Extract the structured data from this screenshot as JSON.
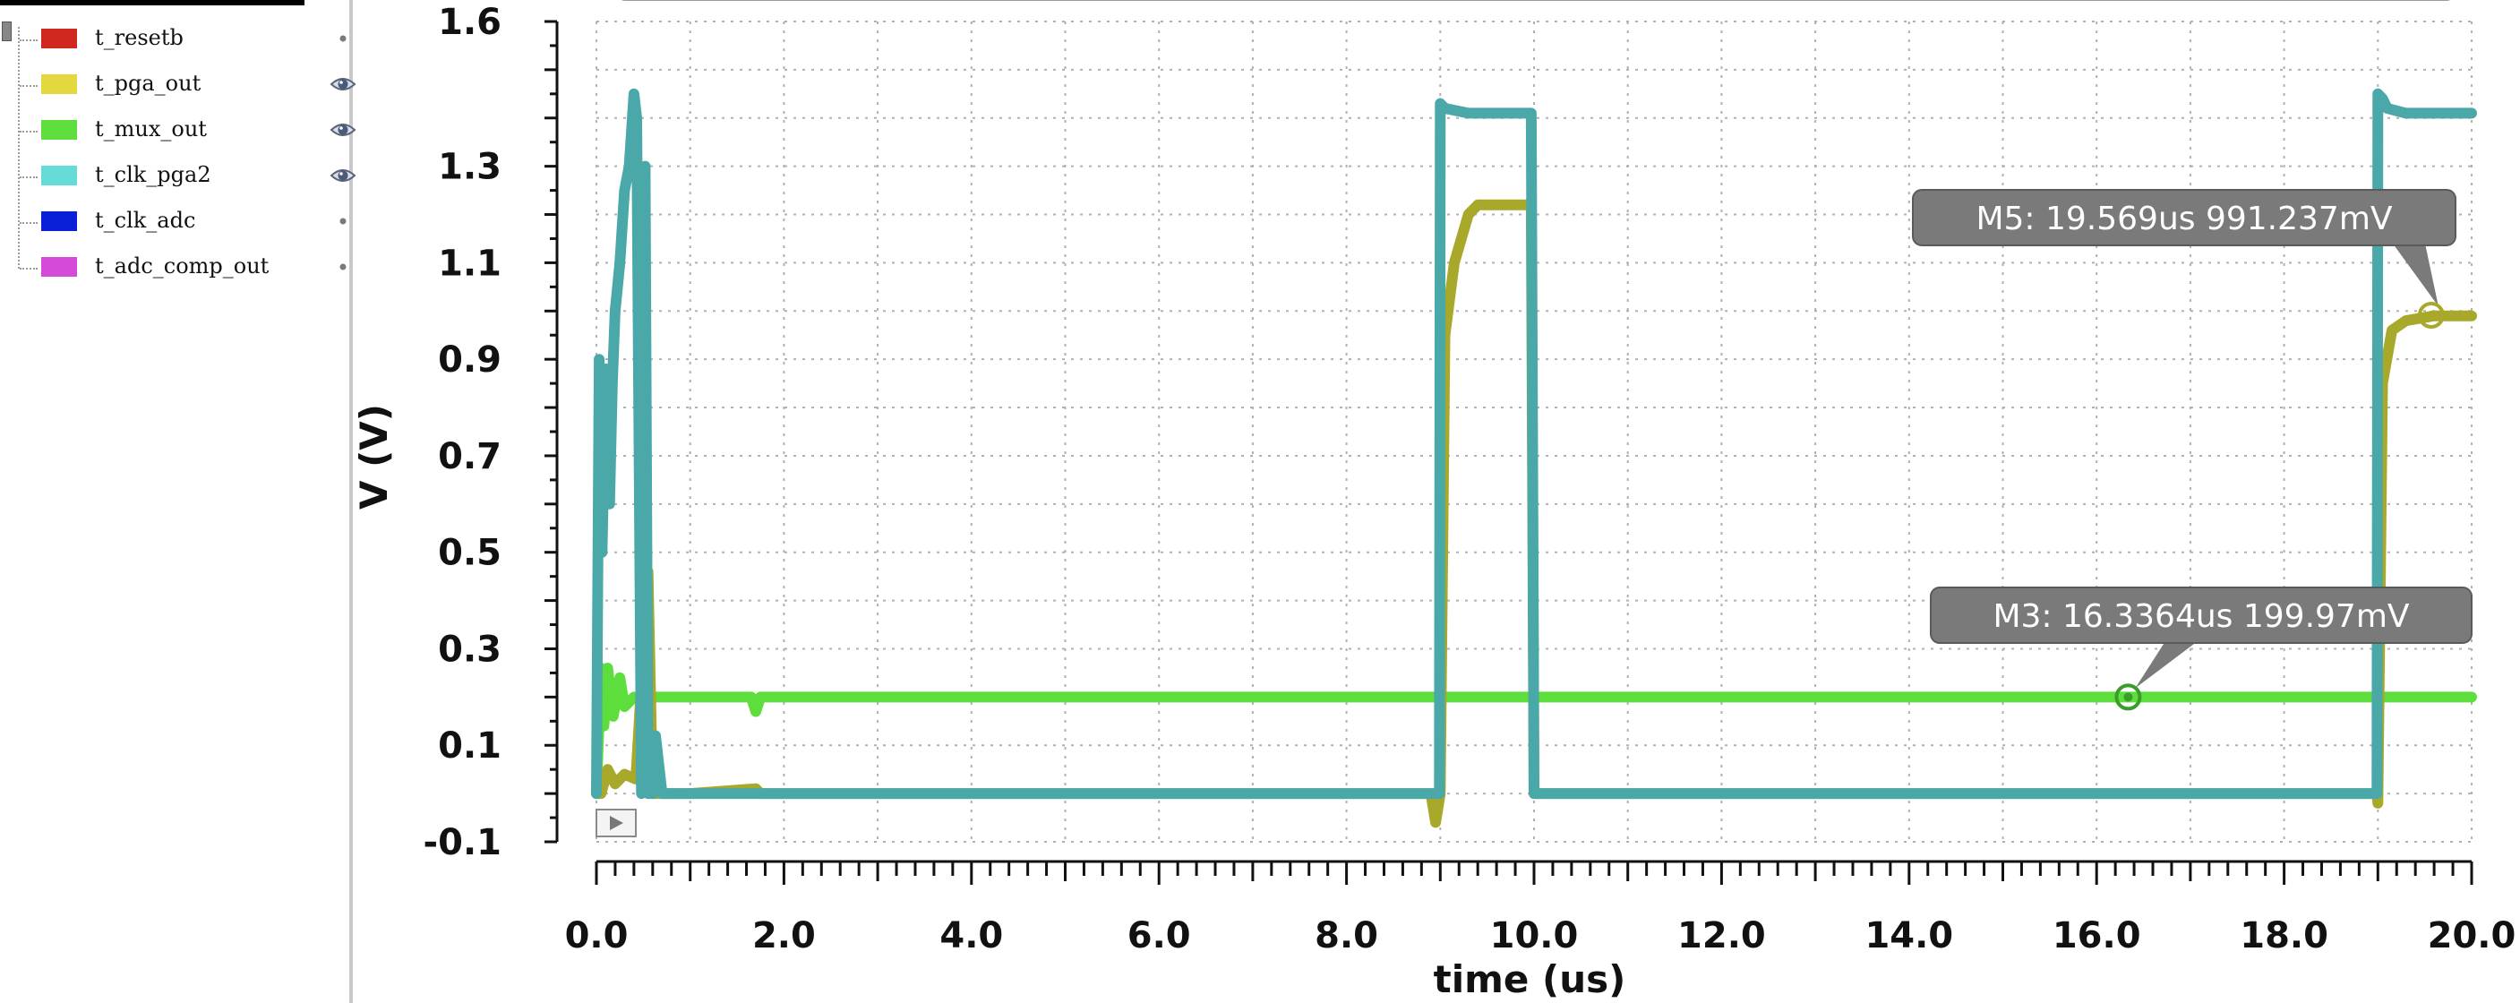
{
  "legend": {
    "items": [
      {
        "name": "t_resetb",
        "color": "#d0281e",
        "visible": false
      },
      {
        "name": "t_pga_out",
        "color": "#e3d840",
        "visible": true
      },
      {
        "name": "t_mux_out",
        "color": "#5ede3c",
        "visible": true
      },
      {
        "name": "t_clk_pga2",
        "color": "#66dcd8",
        "visible": true
      },
      {
        "name": "t_clk_adc",
        "color": "#0a1fd8",
        "visible": false
      },
      {
        "name": "t_adc_comp_out",
        "color": "#d54ad9",
        "visible": false
      }
    ]
  },
  "chart_data": {
    "type": "line",
    "xlabel": "time (us)",
    "ylabel": "V (V)",
    "xlim": [
      0,
      20
    ],
    "ylim": [
      -0.1,
      1.6
    ],
    "x_ticks": [
      0,
      2,
      4,
      6,
      8,
      10,
      12,
      14,
      16,
      18,
      20
    ],
    "x_tick_labels": [
      "0.0",
      "2.0",
      "4.0",
      "6.0",
      "8.0",
      "10.0",
      "12.0",
      "14.0",
      "16.0",
      "18.0",
      "20.0"
    ],
    "y_tick_labels": [
      {
        "value": 1.6,
        "label": "1.6"
      },
      {
        "value": 1.3,
        "label": "1.3"
      },
      {
        "value": 1.1,
        "label": "1.1"
      },
      {
        "value": 0.9,
        "label": "0.9"
      },
      {
        "value": 0.7,
        "label": "0.7"
      },
      {
        "value": 0.5,
        "label": "0.5"
      },
      {
        "value": 0.3,
        "label": "0.3"
      },
      {
        "value": 0.1,
        "label": "0.1"
      },
      {
        "value": -0.1,
        "label": "-0.1"
      }
    ],
    "grid": true,
    "series": [
      {
        "name": "t_mux_out",
        "color": "#5ede3c",
        "x": [
          0,
          0.05,
          0.08,
          0.12,
          0.18,
          0.25,
          0.3,
          0.4,
          0.5,
          0.6,
          1.0,
          1.65,
          1.7,
          1.75,
          1.8,
          3,
          5,
          7,
          9,
          11,
          13,
          15,
          17,
          19,
          20
        ],
        "y": [
          0.0,
          0.26,
          0.14,
          0.26,
          0.16,
          0.24,
          0.18,
          0.2,
          0.19,
          0.2,
          0.2,
          0.2,
          0.17,
          0.2,
          0.2,
          0.2,
          0.2,
          0.2,
          0.2,
          0.2,
          0.2,
          0.2,
          0.2,
          0.2,
          0.2
        ]
      },
      {
        "name": "t_pga_out",
        "color": "#a8a82a",
        "x": [
          0,
          0.05,
          0.12,
          0.2,
          0.3,
          0.42,
          0.55,
          0.6,
          0.62,
          0.7,
          1.0,
          1.7,
          1.75,
          3,
          5,
          7,
          8.9,
          8.95,
          9.0,
          9.05,
          9.15,
          9.3,
          9.4,
          9.6,
          9.97,
          10.0,
          10.1,
          12,
          14,
          16,
          18.99,
          19.0,
          19.05,
          19.15,
          19.3,
          19.6,
          20
        ],
        "y": [
          0.0,
          0.0,
          0.05,
          0.02,
          0.04,
          0.03,
          0.46,
          0.0,
          0.0,
          0.0,
          0.0,
          0.01,
          0.0,
          0.0,
          0.0,
          0.0,
          0.0,
          -0.06,
          0.0,
          0.95,
          1.1,
          1.2,
          1.22,
          1.22,
          1.22,
          0.0,
          0.0,
          0.0,
          0.0,
          0.0,
          0.0,
          -0.02,
          0.85,
          0.96,
          0.98,
          0.99,
          0.99
        ]
      },
      {
        "name": "t_clk_pga2",
        "color": "#4aa8a8",
        "x": [
          0,
          0.03,
          0.06,
          0.1,
          0.14,
          0.17,
          0.2,
          0.25,
          0.3,
          0.35,
          0.4,
          0.43,
          0.48,
          0.52,
          0.55,
          0.6,
          0.63,
          0.7,
          1.0,
          2,
          4,
          6,
          8,
          8.99,
          9.0,
          9.05,
          9.3,
          9.6,
          9.97,
          10.0,
          10.05,
          12,
          14,
          16,
          18,
          18.99,
          19.0,
          19.05,
          19.1,
          19.3,
          19.6,
          20
        ],
        "y": [
          0.0,
          0.9,
          0.5,
          0.88,
          0.6,
          0.85,
          1.0,
          1.1,
          1.25,
          1.3,
          1.45,
          1.4,
          0.0,
          1.3,
          0.0,
          0.0,
          0.12,
          0.0,
          0.0,
          0.0,
          0.0,
          0.0,
          0.0,
          0.0,
          1.43,
          1.42,
          1.41,
          1.41,
          1.41,
          0.0,
          0.0,
          0.0,
          0.0,
          0.0,
          0.0,
          0.0,
          1.45,
          1.44,
          1.42,
          1.41,
          1.41,
          1.41
        ]
      }
    ],
    "markers": [
      {
        "label": "M5: 19.569us 991.237mV",
        "x": 19.569,
        "y": 0.991237,
        "color": "#a8a82a"
      },
      {
        "label": "M3: 16.3364us 199.97mV",
        "x": 16.3364,
        "y": 0.19997,
        "color": "#3a9c2a"
      }
    ]
  }
}
